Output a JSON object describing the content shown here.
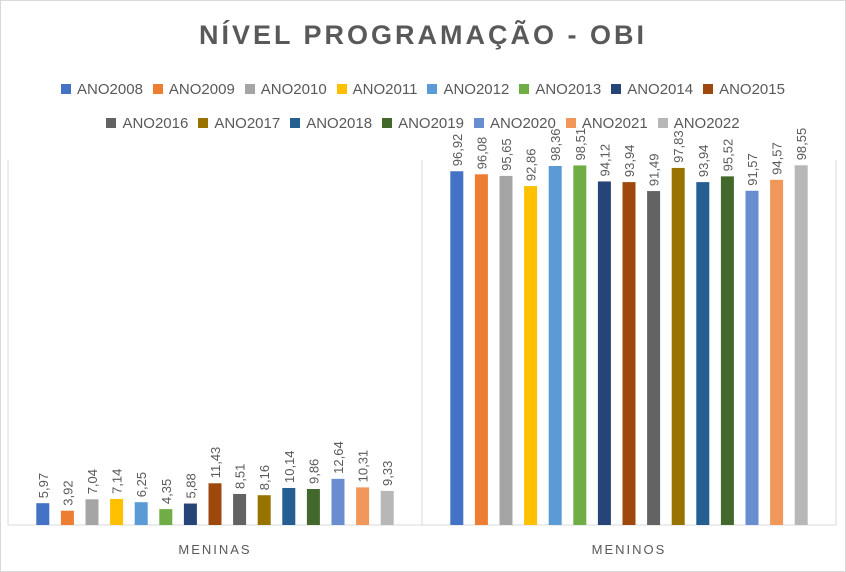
{
  "chart_data": {
    "type": "bar",
    "title": "NÍVEL PROGRAMAÇÃO - OBI",
    "categories": [
      "MENINAS",
      "MENINOS"
    ],
    "legend_position": "top",
    "grid": false,
    "series": [
      {
        "name": "ANO2008",
        "color": "#4472C4",
        "values": [
          5.97,
          96.92
        ],
        "labels": [
          "5,97",
          "96,92"
        ]
      },
      {
        "name": "ANO2009",
        "color": "#ED7D31",
        "values": [
          3.92,
          96.08
        ],
        "labels": [
          "3,92",
          "96,08"
        ]
      },
      {
        "name": "ANO2010",
        "color": "#A5A5A5",
        "values": [
          7.04,
          95.65
        ],
        "labels": [
          "7,04",
          "95,65"
        ]
      },
      {
        "name": "ANO2011",
        "color": "#FFC000",
        "values": [
          7.14,
          92.86
        ],
        "labels": [
          "7,14",
          "92,86"
        ]
      },
      {
        "name": "ANO2012",
        "color": "#5B9BD5",
        "values": [
          6.25,
          98.36
        ],
        "labels": [
          "6,25",
          "98,36"
        ]
      },
      {
        "name": "ANO2013",
        "color": "#70AD47",
        "values": [
          4.35,
          98.51
        ],
        "labels": [
          "4,35",
          "98,51"
        ]
      },
      {
        "name": "ANO2014",
        "color": "#264478",
        "values": [
          5.88,
          94.12
        ],
        "labels": [
          "5,88",
          "94,12"
        ]
      },
      {
        "name": "ANO2015",
        "color": "#9E480E",
        "values": [
          11.43,
          93.94
        ],
        "labels": [
          "11,43",
          "93,94"
        ]
      },
      {
        "name": "ANO2016",
        "color": "#636363",
        "values": [
          8.51,
          91.49
        ],
        "labels": [
          "8,51",
          "91,49"
        ]
      },
      {
        "name": "ANO2017",
        "color": "#997300",
        "values": [
          8.16,
          97.83
        ],
        "labels": [
          "8,16",
          "97,83"
        ]
      },
      {
        "name": "ANO2018",
        "color": "#255E91",
        "values": [
          10.14,
          93.94
        ],
        "labels": [
          "10,14",
          "93,94"
        ]
      },
      {
        "name": "ANO2019",
        "color": "#43682B",
        "values": [
          9.86,
          95.52
        ],
        "labels": [
          "9,86",
          "95,52"
        ]
      },
      {
        "name": "ANO2020",
        "color": "#698ED0",
        "values": [
          12.64,
          91.57
        ],
        "labels": [
          "12,64",
          "91,57"
        ]
      },
      {
        "name": "ANO2021",
        "color": "#F1975A",
        "values": [
          10.31,
          94.57
        ],
        "labels": [
          "10,31",
          "94,57"
        ]
      },
      {
        "name": "ANO2022",
        "color": "#B7B7B7",
        "values": [
          9.33,
          98.55
        ],
        "labels": [
          "9,33",
          "98,55"
        ]
      }
    ],
    "ylim": [
      0,
      100
    ]
  }
}
